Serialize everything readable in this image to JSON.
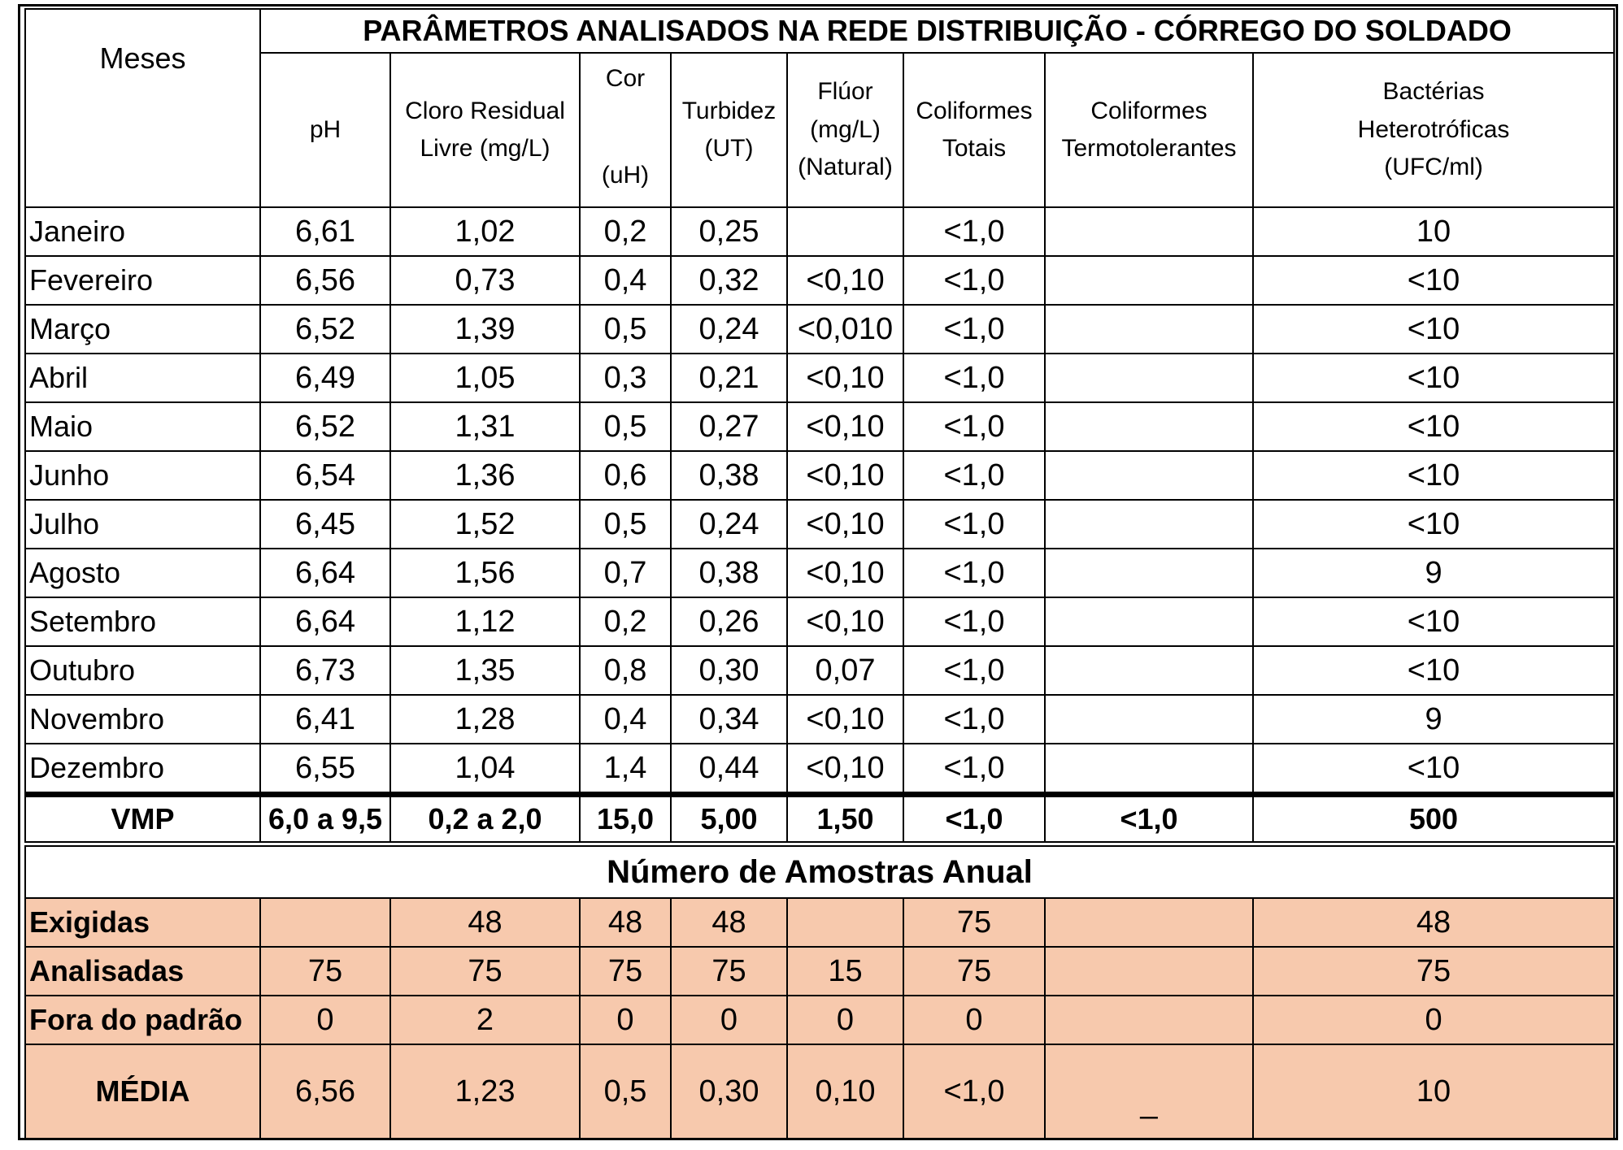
{
  "main_title": "PARÂMETROS ANALISADOS NA REDE DISTRIBUIÇÃO - CÓRREGO DO SOLDADO",
  "headers": {
    "meses": "Meses",
    "ph": "pH",
    "cloro_l1": "Cloro Residual",
    "cloro_l2": "Livre (mg/L)",
    "cor_l1": "Cor",
    "cor_l2": "(uH)",
    "turbidez_l1": "Turbidez",
    "turbidez_l2": "(UT)",
    "fluor_l1": "Flúor",
    "fluor_l2": "(mg/L)",
    "fluor_l3": "(Natural)",
    "coli_tot_l1": "Coliformes",
    "coli_tot_l2": "Totais",
    "coli_termo_l1": "Coliformes",
    "coli_termo_l2": "Termotolerantes",
    "bact_l1": "Bactérias",
    "bact_l2": "Heterotróficas",
    "bact_l3": "(UFC/ml)"
  },
  "rows": [
    {
      "mes": "Janeiro",
      "ph": "6,61",
      "cloro": "1,02",
      "cor": "0,2",
      "turbidez": "0,25",
      "fluor": "",
      "coli_tot": "<1,0",
      "coli_termo": "",
      "bact": "10"
    },
    {
      "mes": "Fevereiro",
      "ph": "6,56",
      "cloro": "0,73",
      "cor": "0,4",
      "turbidez": "0,32",
      "fluor": "<0,10",
      "coli_tot": "<1,0",
      "coli_termo": "",
      "bact": "<10"
    },
    {
      "mes": "Março",
      "ph": "6,52",
      "cloro": "1,39",
      "cor": "0,5",
      "turbidez": "0,24",
      "fluor": "<0,010",
      "coli_tot": "<1,0",
      "coli_termo": "",
      "bact": "<10"
    },
    {
      "mes": "Abril",
      "ph": "6,49",
      "cloro": "1,05",
      "cor": "0,3",
      "turbidez": "0,21",
      "fluor": "<0,10",
      "coli_tot": "<1,0",
      "coli_termo": "",
      "bact": "<10"
    },
    {
      "mes": "Maio",
      "ph": "6,52",
      "cloro": "1,31",
      "cor": "0,5",
      "turbidez": "0,27",
      "fluor": "<0,10",
      "coli_tot": "<1,0",
      "coli_termo": "",
      "bact": "<10"
    },
    {
      "mes": "Junho",
      "ph": "6,54",
      "cloro": "1,36",
      "cor": "0,6",
      "turbidez": "0,38",
      "fluor": "<0,10",
      "coli_tot": "<1,0",
      "coli_termo": "",
      "bact": "<10"
    },
    {
      "mes": "Julho",
      "ph": "6,45",
      "cloro": "1,52",
      "cor": "0,5",
      "turbidez": "0,24",
      "fluor": "<0,10",
      "coli_tot": "<1,0",
      "coli_termo": "",
      "bact": "<10"
    },
    {
      "mes": "Agosto",
      "ph": "6,64",
      "cloro": "1,56",
      "cor": "0,7",
      "turbidez": "0,38",
      "fluor": "<0,10",
      "coli_tot": "<1,0",
      "coli_termo": "",
      "bact": "9"
    },
    {
      "mes": "Setembro",
      "ph": "6,64",
      "cloro": "1,12",
      "cor": "0,2",
      "turbidez": "0,26",
      "fluor": "<0,10",
      "coli_tot": "<1,0",
      "coli_termo": "",
      "bact": "<10"
    },
    {
      "mes": "Outubro",
      "ph": "6,73",
      "cloro": "1,35",
      "cor": "0,8",
      "turbidez": "0,30",
      "fluor": "0,07",
      "coli_tot": "<1,0",
      "coli_termo": "",
      "bact": "<10"
    },
    {
      "mes": "Novembro",
      "ph": "6,41",
      "cloro": "1,28",
      "cor": "0,4",
      "turbidez": "0,34",
      "fluor": "<0,10",
      "coli_tot": "<1,0",
      "coli_termo": "",
      "bact": "9"
    },
    {
      "mes": "Dezembro",
      "ph": "6,55",
      "cloro": "1,04",
      "cor": "1,4",
      "turbidez": "0,44",
      "fluor": "<0,10",
      "coli_tot": "<1,0",
      "coli_termo": "",
      "bact": "<10"
    }
  ],
  "vmp": {
    "label": "VMP",
    "ph": "6,0 a 9,5",
    "cloro": "0,2 a 2,0",
    "cor": "15,0",
    "turbidez": "5,00",
    "fluor": "1,50",
    "coli_tot": "<1,0",
    "coli_termo": "<1,0",
    "bact": "500"
  },
  "samples_title": "Número de Amostras Anual",
  "samples": [
    {
      "label": "Exigidas",
      "ph": "_",
      "cloro": "48",
      "cor": "48",
      "turbidez": "48",
      "fluor": "_",
      "coli_tot": "75",
      "coli_termo": "_",
      "bact": "48"
    },
    {
      "label": "Analisadas",
      "ph": "75",
      "cloro": "75",
      "cor": "75",
      "turbidez": "75",
      "fluor": "15",
      "coli_tot": "75",
      "coli_termo": "_",
      "bact": "75"
    },
    {
      "label": "Fora do padrão",
      "ph": "0",
      "cloro": "2",
      "cor": "0",
      "turbidez": "0",
      "fluor": "0",
      "coli_tot": "0",
      "coli_termo": "_",
      "bact": "0"
    }
  ],
  "media": {
    "label": "MÉDIA",
    "ph": "6,56",
    "cloro": "1,23",
    "cor": "0,5",
    "turbidez": "0,30",
    "fluor": "0,10",
    "coli_tot": "<1,0",
    "coli_termo": "_",
    "bact": "10"
  }
}
